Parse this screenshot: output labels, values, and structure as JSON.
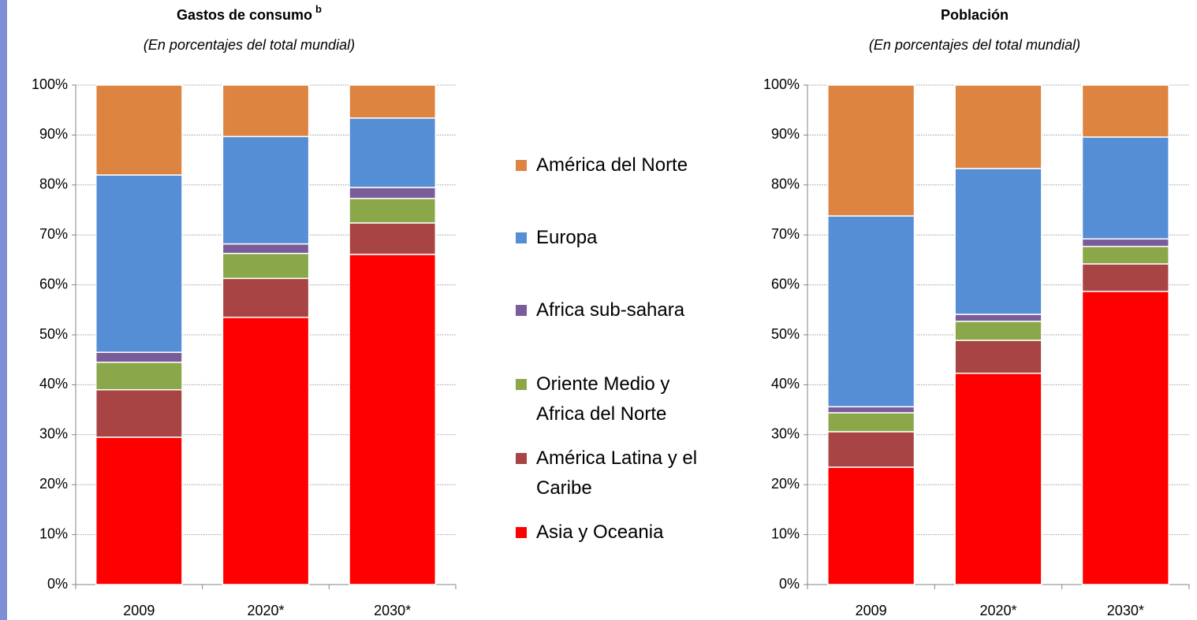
{
  "chart_data": [
    {
      "type": "stacked_bar",
      "title": "Gastos de consumo",
      "title_note": "b",
      "subtitle": "(En porcentajes del total mundial)",
      "categories": [
        "2009",
        "2020*",
        "2030*"
      ],
      "ylim": [
        0,
        100
      ],
      "yticks": [
        {
          "value": 0,
          "label": "0%"
        },
        {
          "value": 10,
          "label": "10%"
        },
        {
          "value": 20,
          "label": "20%"
        },
        {
          "value": 30,
          "label": "30%"
        },
        {
          "value": 40,
          "label": "40%"
        },
        {
          "value": 50,
          "label": "50%"
        },
        {
          "value": 60,
          "label": "60%"
        },
        {
          "value": 70,
          "label": "70%"
        },
        {
          "value": 80,
          "label": "80%"
        },
        {
          "value": 90,
          "label": "90%"
        },
        {
          "value": 100,
          "label": "100%"
        }
      ],
      "grid": true,
      "series": [
        {
          "name": "Asia y Oceania",
          "color": "#ff0000",
          "values": [
            29.5,
            53.5,
            66.1
          ]
        },
        {
          "name": "América Latina y el Caribe",
          "color": "#a84444",
          "values": [
            9.5,
            7.8,
            6.3
          ]
        },
        {
          "name": "Oriente Medio y Africa del Norte",
          "color": "#8aa84a",
          "values": [
            5.5,
            5,
            4.9
          ]
        },
        {
          "name": "Africa sub-sahara",
          "color": "#7a5c9a",
          "values": [
            2,
            1.9,
            2.2
          ]
        },
        {
          "name": "Europa",
          "color": "#558ed5",
          "values": [
            35.5,
            21.5,
            13.9
          ]
        },
        {
          "name": "América del Norte",
          "color": "#dd8440",
          "values": [
            18,
            10.3,
            6.6
          ]
        }
      ]
    },
    {
      "type": "stacked_bar",
      "title": "Población",
      "subtitle": "(En porcentajes del total mundial)",
      "categories": [
        "2009",
        "2020*",
        "2030*"
      ],
      "ylim": [
        0,
        100
      ],
      "yticks": [
        {
          "value": 0,
          "label": "0%"
        },
        {
          "value": 10,
          "label": "10%"
        },
        {
          "value": 20,
          "label": "20%"
        },
        {
          "value": 30,
          "label": "30%"
        },
        {
          "value": 40,
          "label": "40%"
        },
        {
          "value": 50,
          "label": "50%"
        },
        {
          "value": 60,
          "label": "60%"
        },
        {
          "value": 70,
          "label": "70%"
        },
        {
          "value": 80,
          "label": "80%"
        },
        {
          "value": 90,
          "label": "90%"
        },
        {
          "value": 100,
          "label": "100%"
        }
      ],
      "grid": true,
      "series": [
        {
          "color": "#ff0000",
          "values": [
            23.5,
            42.3,
            58.7
          ]
        },
        {
          "color": "#a84444",
          "values": [
            7.1,
            6.6,
            5.5
          ]
        },
        {
          "color": "#8aa84a",
          "values": [
            3.8,
            3.8,
            3.5
          ]
        },
        {
          "color": "#7a5c9a",
          "values": [
            1.2,
            1.4,
            1.5
          ]
        },
        {
          "color": "#558ed5",
          "values": [
            38.2,
            29.2,
            20.4
          ]
        },
        {
          "color": "#dd8440",
          "values": [
            26.2,
            16.7,
            10.4
          ]
        }
      ]
    }
  ]
}
